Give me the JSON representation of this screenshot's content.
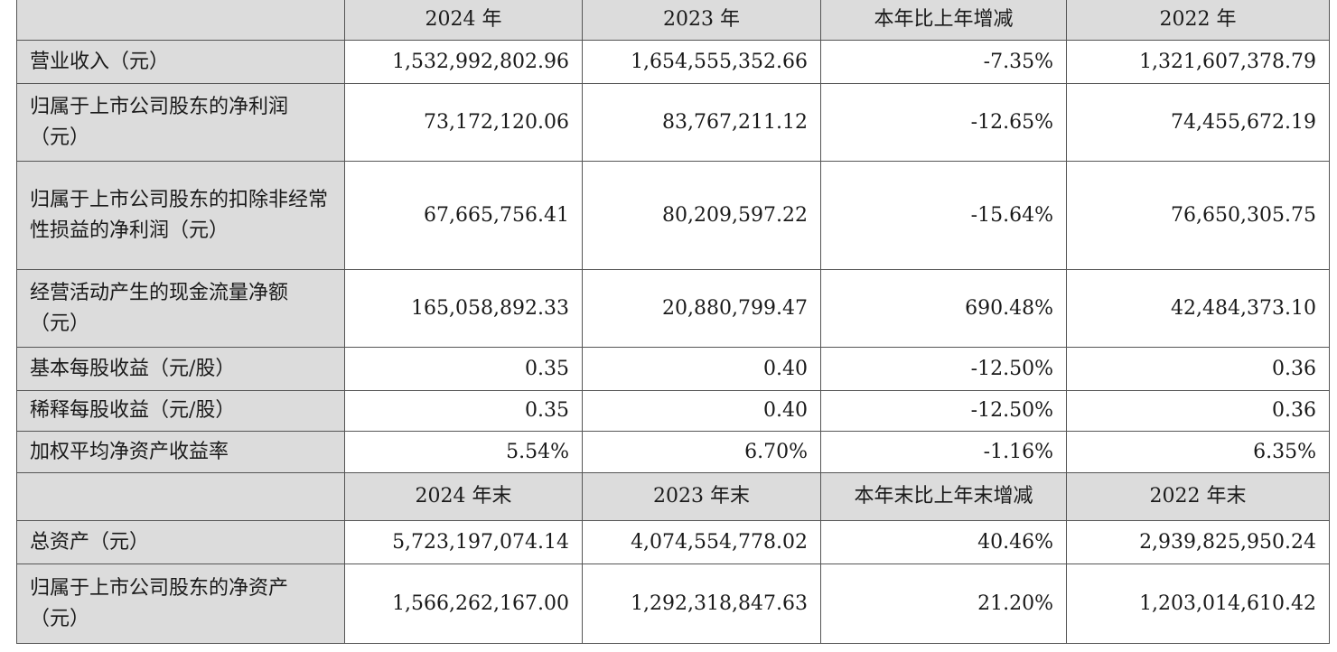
{
  "header1": [
    "",
    "2024 年",
    "2023 年",
    "本年比上年增减",
    "2022 年"
  ],
  "rows1": [
    {
      "label": "营业收入（元）",
      "values": [
        "1,532,992,802.96",
        "1,654,555,352.66",
        "-7.35%",
        "1,321,607,378.79"
      ]
    },
    {
      "label": "归属于上市公司股东的净利润（元）",
      "values": [
        "73,172,120.06",
        "83,767,211.12",
        "-12.65%",
        "74,455,672.19"
      ]
    },
    {
      "label": "归属于上市公司股东的扣除非经常性损益的净利润（元）",
      "values": [
        "67,665,756.41",
        "80,209,597.22",
        "-15.64%",
        "76,650,305.75"
      ]
    },
    {
      "label": "经营活动产生的现金流量净额（元）",
      "values": [
        "165,058,892.33",
        "20,880,799.47",
        "690.48%",
        "42,484,373.10"
      ]
    },
    {
      "label": "基本每股收益（元/股）",
      "values": [
        "0.35",
        "0.40",
        "-12.50%",
        "0.36"
      ]
    },
    {
      "label": "稀释每股收益（元/股）",
      "values": [
        "0.35",
        "0.40",
        "-12.50%",
        "0.36"
      ]
    },
    {
      "label": "加权平均净资产收益率",
      "values": [
        "5.54%",
        "6.70%",
        "-1.16%",
        "6.35%"
      ]
    }
  ],
  "header2": [
    "",
    "2024 年末",
    "2023 年末",
    "本年末比上年末增减",
    "2022 年末"
  ],
  "rows2": [
    {
      "label": "总资产（元）",
      "values": [
        "5,723,197,074.14",
        "4,074,554,778.02",
        "40.46%",
        "2,939,825,950.24"
      ]
    },
    {
      "label": "归属于上市公司股东的净资产（元）",
      "values": [
        "1,566,262,167.00",
        "1,292,318,847.63",
        "21.20%",
        "1,203,014,610.42"
      ]
    }
  ]
}
